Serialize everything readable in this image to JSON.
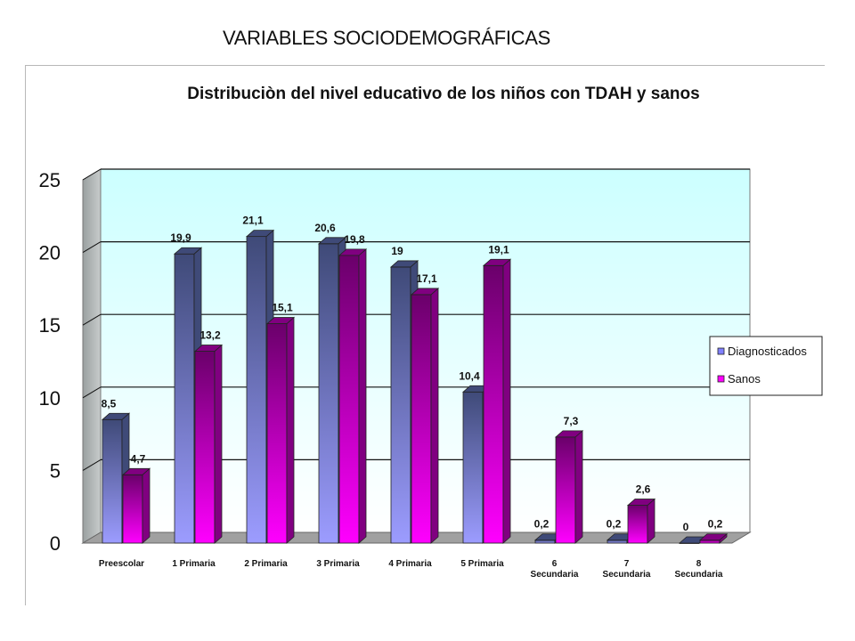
{
  "slide": {
    "title": "VARIABLES SOCIODEMOGRÁFICAS"
  },
  "chart_data": {
    "type": "bar",
    "title": "Distribuciòn del nivel educativo de los niños con TDAH y sanos",
    "xlabel": "",
    "ylabel": "",
    "ylim": [
      0,
      25
    ],
    "yticks": [
      0,
      5,
      10,
      15,
      20,
      25
    ],
    "grid": true,
    "legend_position": "right",
    "categories": [
      [
        "Preescolar"
      ],
      [
        "1 Primaria"
      ],
      [
        "2 Primaria"
      ],
      [
        "3 Primaria"
      ],
      [
        "4 Primaria"
      ],
      [
        "5 Primaria"
      ],
      [
        "6",
        "Secundaria"
      ],
      [
        "7",
        "Secundaria"
      ],
      [
        "8",
        "Secundaria"
      ]
    ],
    "series": [
      {
        "name": "Diagnosticados",
        "values": [
          8.5,
          19.9,
          21.1,
          20.6,
          19,
          10.4,
          0.2,
          0.2,
          0
        ],
        "labels": [
          "8,5",
          "19,9",
          "21,1",
          "20,6",
          "19",
          "10,4",
          "0,2",
          "0,2",
          "0"
        ],
        "color": "#8080ff",
        "color_dark": "#3f4a78"
      },
      {
        "name": "Sanos",
        "values": [
          4.7,
          13.2,
          15.1,
          19.8,
          17.1,
          19.1,
          7.3,
          2.6,
          0.2
        ],
        "labels": [
          "4,7",
          "13,2",
          "15,1",
          "19,8",
          "17,1",
          "19,1",
          "7,3",
          "2,6",
          "0,2"
        ],
        "color": "#ff00ff",
        "color_dark": "#800080"
      }
    ]
  }
}
